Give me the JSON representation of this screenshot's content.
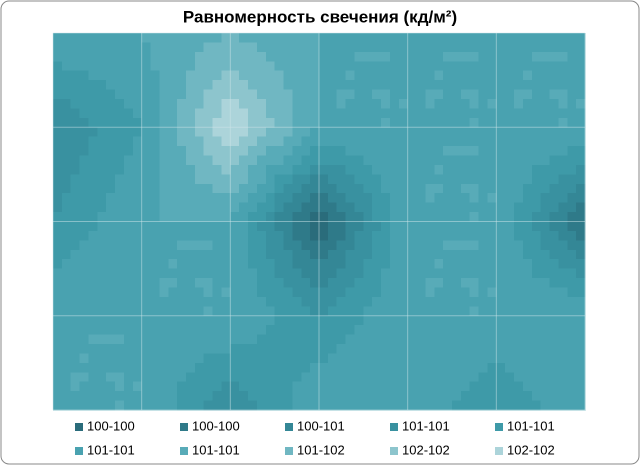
{
  "chart_data": {
    "type": "surface",
    "title": "Равномерность свечения (кд/м²)",
    "z": [
      [
        101.2,
        101.2,
        101.4,
        101.2,
        101.2,
        101.2,
        101.2
      ],
      [
        100.6,
        101.0,
        102.0,
        101.2,
        101.2,
        101.2,
        101.2
      ],
      [
        100.8,
        101.2,
        101.2,
        100.0,
        101.2,
        101.2,
        100.2
      ],
      [
        101.2,
        101.2,
        101.2,
        100.8,
        101.2,
        101.2,
        101.2
      ],
      [
        101.2,
        101.2,
        100.6,
        101.2,
        101.2,
        100.8,
        101.2
      ]
    ],
    "levels": [
      100,
      100.2,
      100.4,
      100.6,
      100.8,
      101,
      101.2,
      101.4,
      101.6,
      101.8,
      102
    ],
    "series": [
      {
        "name": "100-100",
        "color": "#2a6c7b"
      },
      {
        "name": "100-100",
        "color": "#2f7a89"
      },
      {
        "name": "100-101",
        "color": "#348796"
      },
      {
        "name": "101-101",
        "color": "#3991a0"
      },
      {
        "name": "101-101",
        "color": "#3e9aa8"
      },
      {
        "name": "101-101",
        "color": "#49a2b0"
      },
      {
        "name": "101-101",
        "color": "#58abb8"
      },
      {
        "name": "101-102",
        "color": "#70b7c2"
      },
      {
        "name": "102-102",
        "color": "#8dc5cd"
      },
      {
        "name": "102-102",
        "color": "#acd4da"
      }
    ],
    "grid": true
  }
}
